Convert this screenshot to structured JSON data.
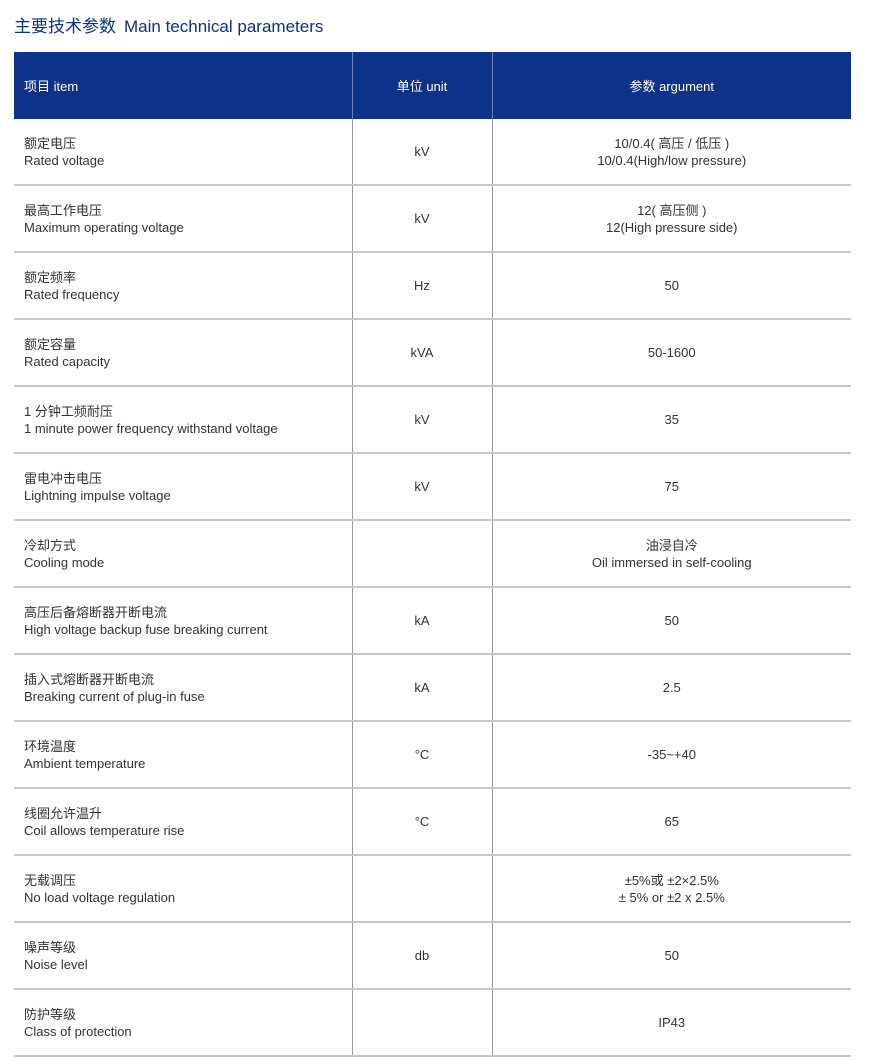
{
  "title": {
    "zh": "主要技术参数",
    "en": "Main technical parameters"
  },
  "colors": {
    "header_bg": "#0d3289",
    "title": "#0d3184"
  },
  "header": {
    "item": "项目 item",
    "unit": "单位 unit",
    "argument": "参数 argument"
  },
  "rows": [
    {
      "zh": "额定电压",
      "en": "Rated voltage",
      "unit": "kV",
      "value": [
        "10/0.4( 高压 / 低压 )",
        "10/0.4(High/low pressure)"
      ]
    },
    {
      "zh": "最高工作电压",
      "en": "Maximum operating voltage",
      "unit": "kV",
      "value": [
        "12( 高压侧 )",
        "12(High pressure side)"
      ]
    },
    {
      "zh": "额定频率",
      "en": "Rated frequency",
      "unit": "Hz",
      "value": [
        "50"
      ]
    },
    {
      "zh": "额定容量",
      "en": "Rated capacity",
      "unit": "kVA",
      "value": [
        "50-1600"
      ]
    },
    {
      "zh": "1 分钟工频耐压",
      "en": "1 minute power frequency withstand voltage",
      "unit": "kV",
      "value": [
        "35"
      ]
    },
    {
      "zh": "雷电冲击电压",
      "en": "Lightning impulse voltage",
      "unit": "kV",
      "value": [
        "75"
      ]
    },
    {
      "zh": "冷却方式",
      "en": "Cooling mode",
      "unit": "",
      "value": [
        "油浸自冷",
        "Oil immersed in self-cooling"
      ]
    },
    {
      "zh": "高压后备熔断器开断电流",
      "en": "High voltage backup fuse breaking current",
      "unit": "kA",
      "value": [
        "50"
      ]
    },
    {
      "zh": "插入式熔断器开断电流",
      "en": "Breaking current of plug-in fuse",
      "unit": "kA",
      "value": [
        "2.5"
      ]
    },
    {
      "zh": "环境温度",
      "en": "Ambient temperature",
      "unit": "°C",
      "value": [
        "-35~+40"
      ]
    },
    {
      "zh": "线圈允许温升",
      "en": "Coil allows temperature rise",
      "unit": "°C",
      "value": [
        "65"
      ]
    },
    {
      "zh": "无载调压",
      "en": "No load voltage regulation",
      "unit": "",
      "value": [
        "±5%或 ±2×2.5%",
        "± 5% or ±2 x 2.5%"
      ]
    },
    {
      "zh": "噪声等级",
      "en": "Noise level",
      "unit": "db",
      "value": [
        "50"
      ]
    },
    {
      "zh": "防护等级",
      "en": "Class of protection",
      "unit": "",
      "value": [
        "IP43"
      ]
    }
  ]
}
